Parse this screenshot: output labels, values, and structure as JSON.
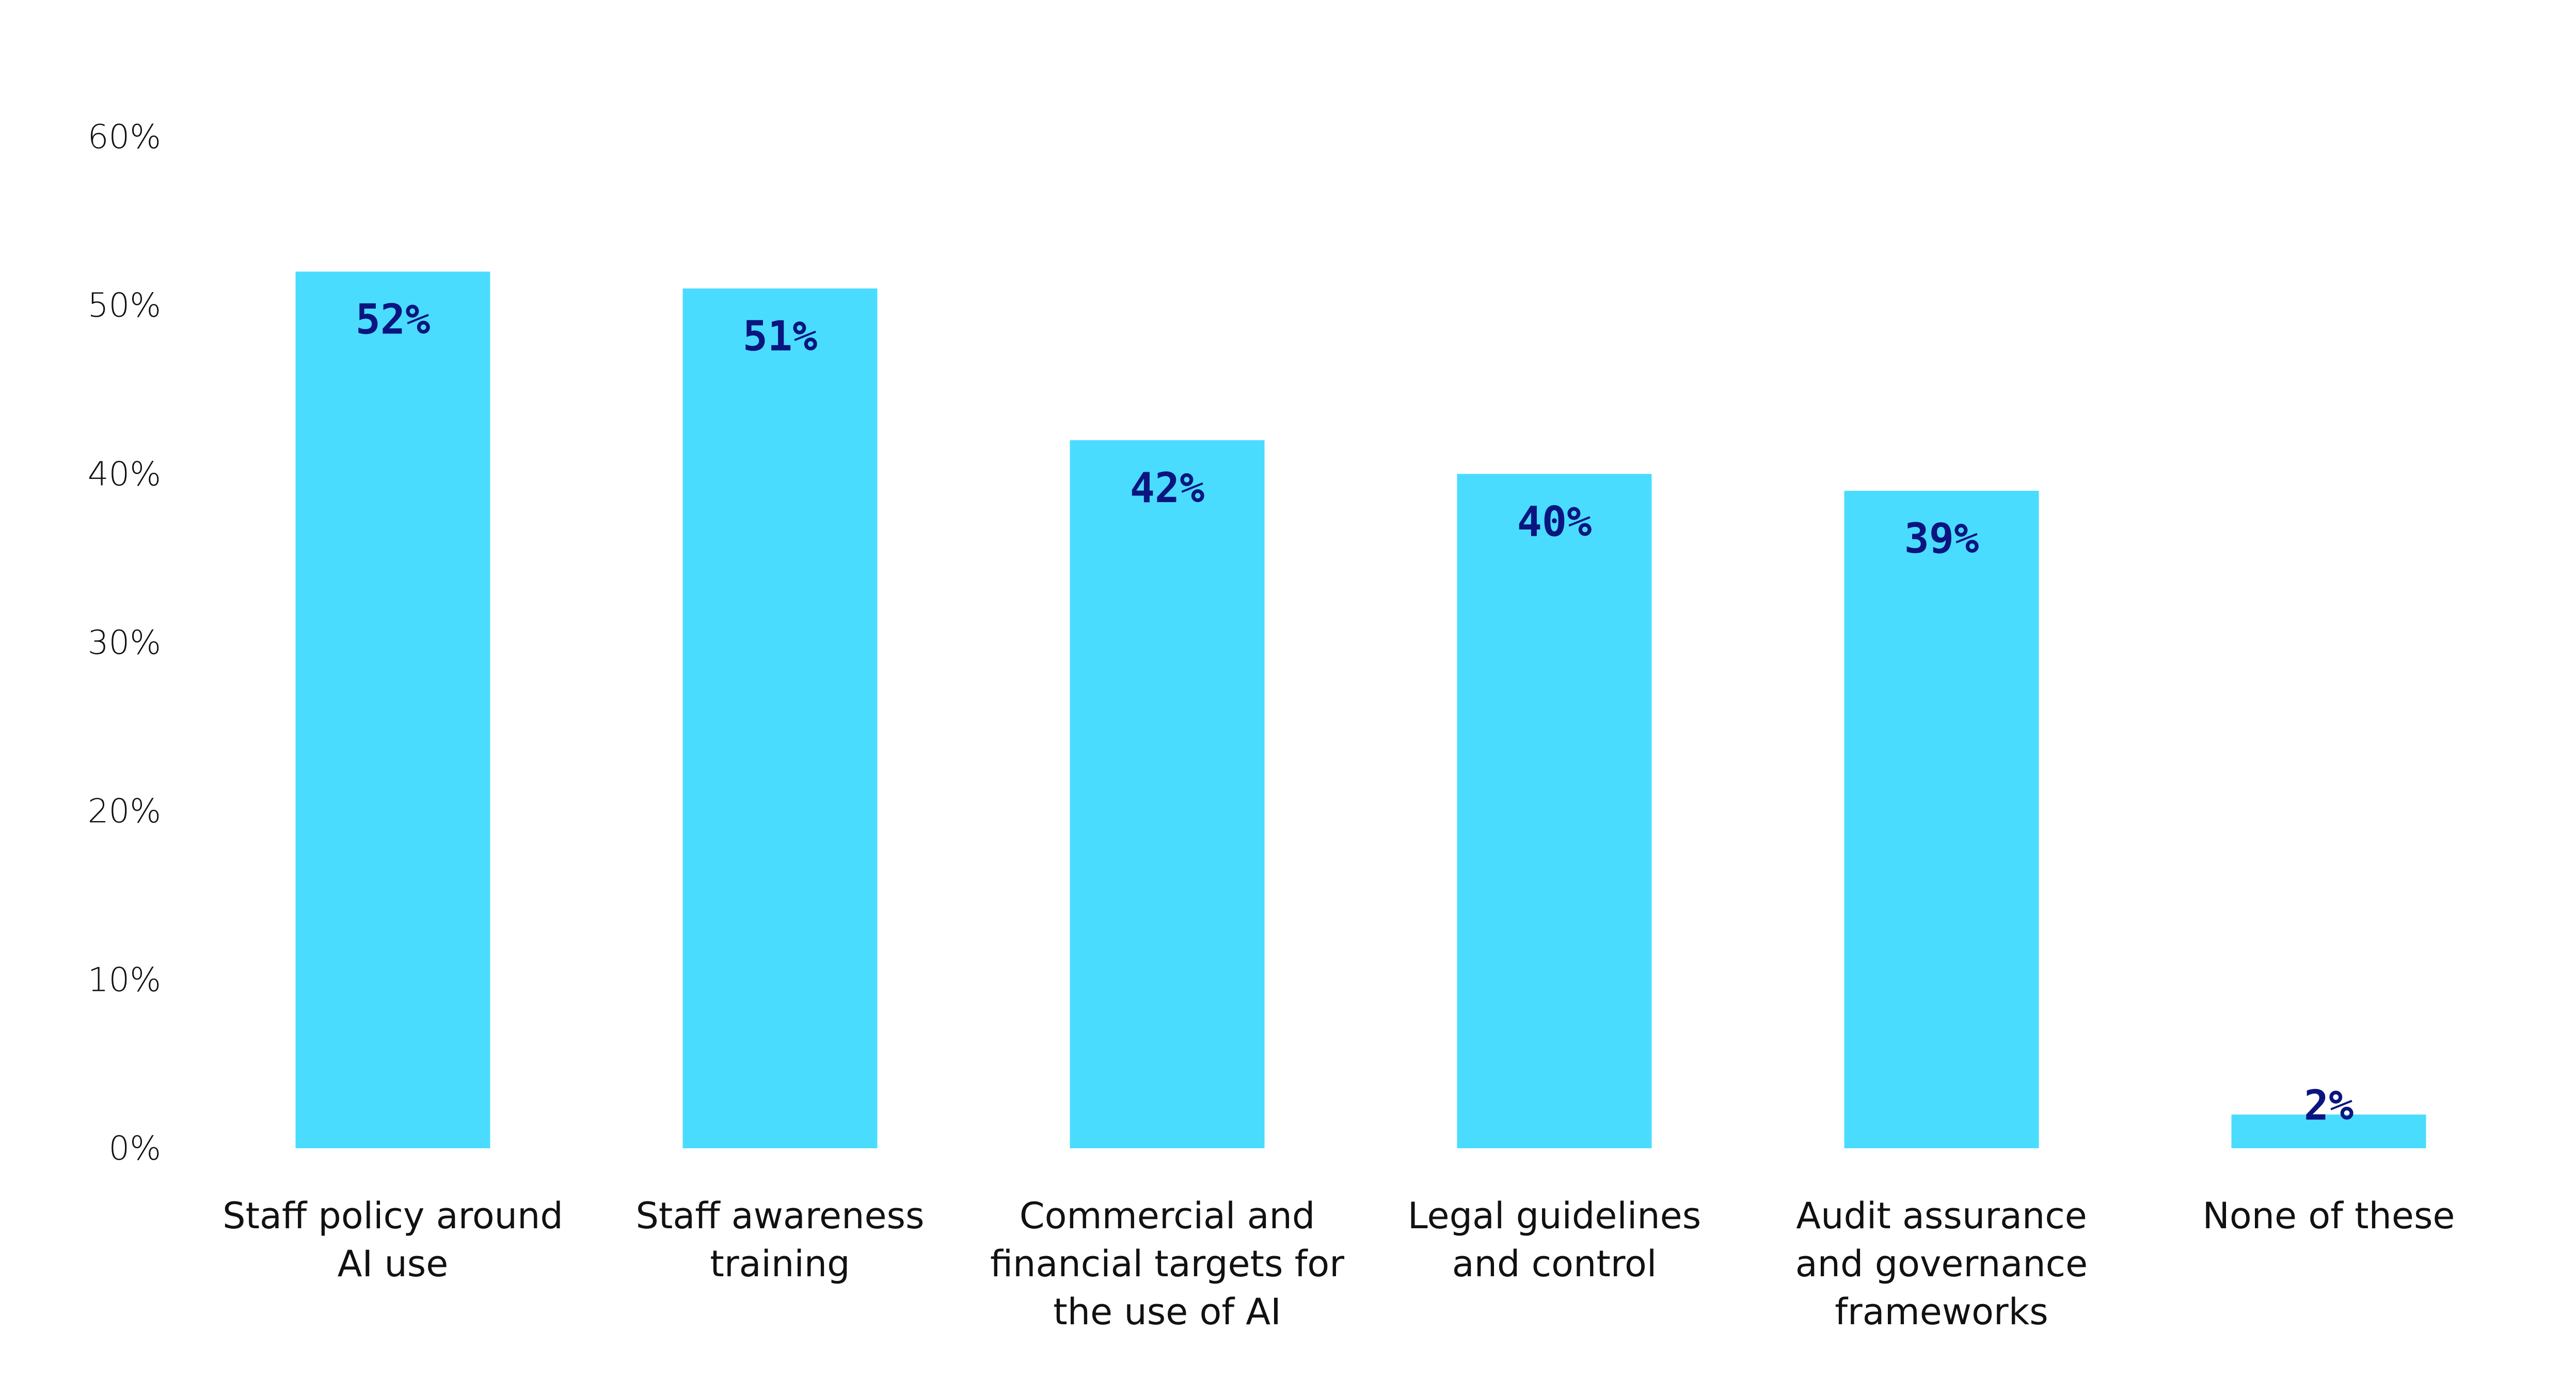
{
  "chart_data": {
    "type": "bar",
    "title": "",
    "xlabel": "",
    "ylabel": "",
    "ylim": [
      0,
      60
    ],
    "yticks": [
      "0%",
      "10%",
      "20%",
      "30%",
      "40%",
      "50%",
      "60%"
    ],
    "grid": false,
    "categories": [
      [
        "Staff policy around",
        "AI use"
      ],
      [
        "Staff awareness",
        "training"
      ],
      [
        "Commercial and",
        "financial targets for",
        "the use of AI"
      ],
      [
        "Legal guidelines",
        "and control"
      ],
      [
        "Audit assurance",
        "and governance",
        "frameworks"
      ],
      [
        "None of these"
      ]
    ],
    "values": [
      52,
      51,
      42,
      40,
      39,
      2
    ],
    "data_labels": [
      "52%",
      "51%",
      "42%",
      "40%",
      "39%",
      "2%"
    ],
    "colors": {
      "bar": "#4adcff",
      "label": "#0a1580",
      "text": "#111111"
    }
  }
}
